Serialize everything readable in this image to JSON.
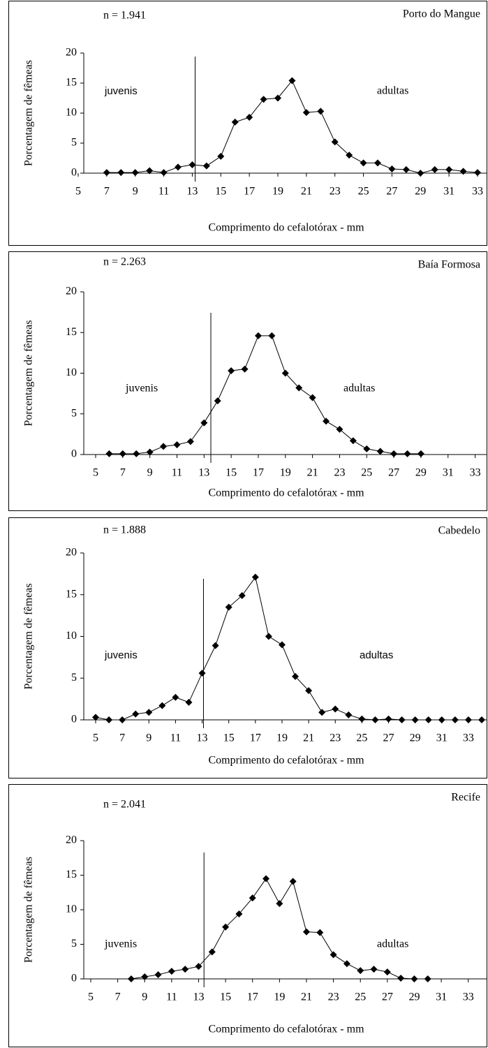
{
  "chart_data": [
    {
      "type": "line",
      "title": "Porto do Mangue",
      "annotation": "n = 1.941",
      "label_left": "juvenis",
      "label_right": "adultas",
      "xlabel": "Comprimento do cefalotórax - mm",
      "ylabel": "Porcentagem de fêmeas",
      "color": "#000000",
      "cutoff": 13.2,
      "x": [
        7,
        8,
        9,
        10,
        11,
        12,
        13,
        14,
        15,
        16,
        17,
        18,
        19,
        20,
        21,
        22,
        23,
        24,
        25,
        26,
        27,
        28,
        29,
        30,
        31,
        32,
        33
      ],
      "values": [
        0.1,
        0.1,
        0.1,
        0.4,
        0.1,
        1.0,
        1.4,
        1.2,
        2.8,
        8.5,
        9.3,
        12.3,
        12.5,
        15.4,
        10.1,
        10.3,
        5.2,
        3.0,
        1.7,
        1.7,
        0.7,
        0.6,
        0.0,
        0.6,
        0.6,
        0.3,
        0.1
      ],
      "xlim": [
        5,
        33
      ],
      "ylim": [
        0,
        20
      ],
      "xticks": [
        5,
        7,
        9,
        11,
        13,
        15,
        17,
        19,
        21,
        23,
        25,
        27,
        29,
        31,
        33
      ],
      "yticks": [
        0,
        5,
        10,
        15,
        20
      ]
    },
    {
      "type": "line",
      "title": "Baía Formosa",
      "annotation": "n = 2.263",
      "label_left": "juvenis",
      "label_right": "adultas",
      "xlabel": "Comprimento do cefalotórax - mm",
      "ylabel": "Porcentagem de fêmeas",
      "color": "#000000",
      "cutoff": 13.5,
      "x": [
        6,
        7,
        8,
        9,
        10,
        11,
        12,
        13,
        14,
        15,
        16,
        17,
        18,
        19,
        20,
        21,
        22,
        23,
        24,
        25,
        26,
        27,
        28,
        29
      ],
      "values": [
        0.1,
        0.1,
        0.1,
        0.3,
        1.0,
        1.2,
        1.6,
        3.9,
        6.6,
        10.3,
        10.5,
        14.6,
        14.6,
        10.0,
        8.2,
        7.0,
        4.1,
        3.1,
        1.7,
        0.7,
        0.4,
        0.1,
        0.1,
        0.1
      ],
      "xlim": [
        5,
        34
      ],
      "ylim": [
        0,
        20
      ],
      "xticks": [
        5,
        7,
        9,
        11,
        13,
        15,
        17,
        19,
        21,
        23,
        25,
        27,
        29,
        31,
        33
      ],
      "yticks": [
        0,
        5,
        10,
        15,
        20
      ]
    },
    {
      "type": "line",
      "title": "Cabedelo",
      "annotation": "n = 1.888",
      "label_left": "juvenis",
      "label_right": "adultas",
      "xlabel": "Comprimento do cefalotórax - mm",
      "ylabel": "Porcentagem de fêmeas",
      "color": "#000000",
      "cutoff": 13.1,
      "x": [
        5,
        6,
        7,
        8,
        9,
        10,
        11,
        12,
        13,
        14,
        15,
        16,
        17,
        18,
        19,
        20,
        21,
        22,
        23,
        24,
        25,
        26,
        27,
        28,
        29,
        30,
        31,
        32,
        33,
        34
      ],
      "values": [
        0.3,
        0,
        0,
        0.7,
        0.9,
        1.7,
        2.7,
        2.1,
        5.6,
        8.9,
        13.5,
        14.9,
        17.1,
        10.0,
        9.0,
        5.2,
        3.5,
        0.9,
        1.3,
        0.6,
        0.1,
        0,
        0.1,
        0,
        0,
        0,
        0,
        0,
        0,
        0
      ],
      "xlim": [
        5,
        34
      ],
      "ylim": [
        0,
        20
      ],
      "xticks": [
        5,
        7,
        9,
        11,
        13,
        15,
        17,
        19,
        21,
        23,
        25,
        27,
        29,
        31,
        33
      ],
      "yticks": [
        0,
        5,
        10,
        15,
        20
      ]
    },
    {
      "type": "line",
      "title": "Recife",
      "annotation": "n = 2.041",
      "label_left": "juvenis",
      "label_right": "adultas",
      "xlabel": "Comprimento do cefalotórax - mm",
      "ylabel": "Porcentagem de fêmeas",
      "color": "#000000",
      "cutoff": 13.4,
      "x": [
        8,
        9,
        10,
        11,
        12,
        13,
        14,
        15,
        16,
        17,
        18,
        19,
        20,
        21,
        22,
        23,
        24,
        25,
        26,
        27,
        28,
        29,
        30
      ],
      "values": [
        0,
        0.3,
        0.6,
        1.1,
        1.4,
        1.8,
        3.9,
        7.5,
        9.4,
        11.7,
        14.5,
        10.9,
        14.1,
        6.8,
        6.7,
        3.5,
        2.2,
        1.2,
        1.4,
        1.0,
        0.1,
        0,
        0
      ],
      "xlim": [
        5,
        34
      ],
      "ylim": [
        0,
        20
      ],
      "xticks": [
        5,
        7,
        9,
        11,
        13,
        15,
        17,
        19,
        21,
        23,
        25,
        27,
        29,
        31,
        33
      ],
      "yticks": [
        0,
        5,
        10,
        15,
        20
      ]
    }
  ]
}
